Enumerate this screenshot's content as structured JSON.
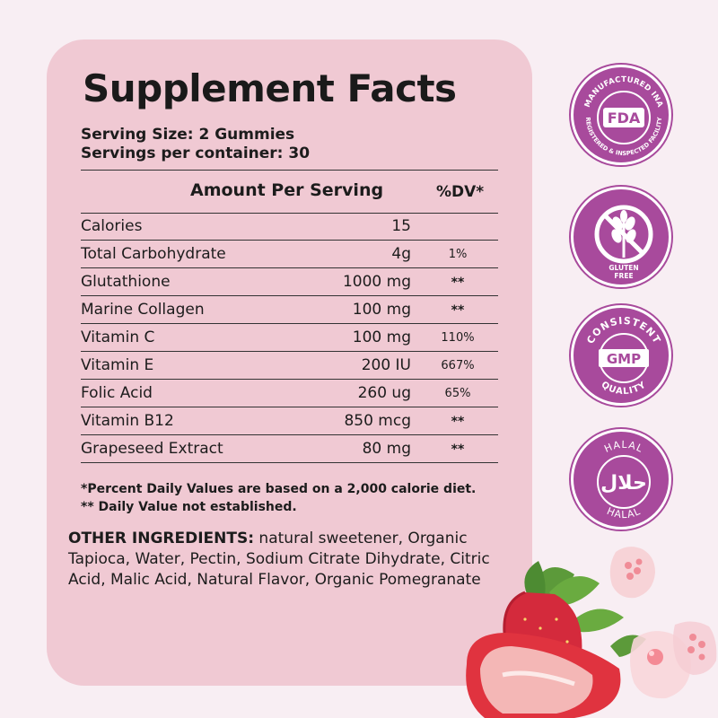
{
  "facts": {
    "title": "Supplement Facts",
    "serving_size": "Serving Size: 2 Gummies",
    "servings_per_container": "Servings per container: 30",
    "header_amount": "Amount Per Serving",
    "header_dv": "%DV*",
    "rows": [
      {
        "name": "Calories",
        "amount": "15",
        "dv": ""
      },
      {
        "name": "Total Carbohydrate",
        "amount": "4g",
        "dv": "1%"
      },
      {
        "name": "Glutathione",
        "amount": "1000 mg",
        "dv": "**"
      },
      {
        "name": "Marine Collagen",
        "amount": "100 mg",
        "dv": "**"
      },
      {
        "name": "Vitamin C",
        "amount": "100 mg",
        "dv": "110%"
      },
      {
        "name": "Vitamin E",
        "amount": "200 IU",
        "dv": "667%"
      },
      {
        "name": "Folic Acid",
        "amount": "260 ug",
        "dv": "65%"
      },
      {
        "name": "Vitamin B12",
        "amount": "850 mcg",
        "dv": "**"
      },
      {
        "name": "Grapeseed Extract",
        "amount": "80 mg",
        "dv": "**"
      }
    ],
    "footnote_1": "*Percent Daily Values are based on a 2,000 calorie diet.",
    "footnote_2": "** Daily Value not established.",
    "other_label": "OTHER INGREDIENTS:",
    "other_text": " natural sweetener, Organic Tapioca, Water, Pectin, Sodium Citrate Dihydrate, Citric Acid, Malic Acid, Natural Flavor, Organic Pomegranate"
  },
  "badges": {
    "fda": {
      "top": "MANUFACTURED INA",
      "center": "FDA",
      "bottom": "REGISTERED & INSPECTED FACILITY"
    },
    "gluten": {
      "text1": "GLUTEN",
      "text2": "FREE",
      "icon": "no-wheat-icon"
    },
    "gmp": {
      "top": "CONSISTENT",
      "center": "GMP",
      "bottom": "QUALITY"
    },
    "halal": {
      "top": "HALAL",
      "center": "حلال",
      "bottom": "HALAL"
    }
  },
  "colors": {
    "card": "#f0c9d3",
    "badge": "#a84a9c",
    "background": "#f8eef3"
  }
}
